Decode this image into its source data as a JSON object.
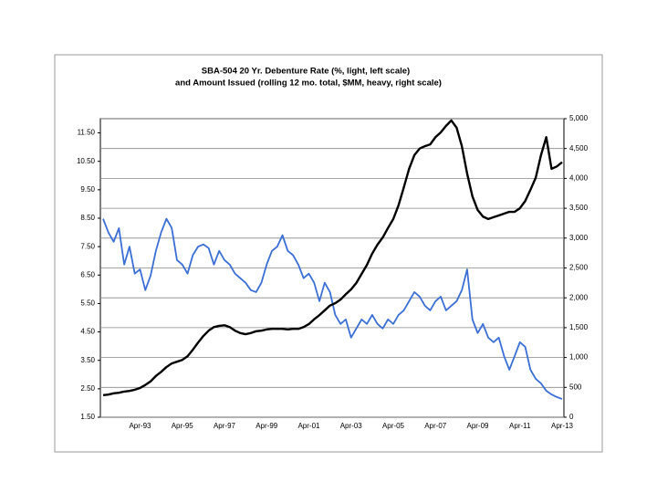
{
  "chart_data": {
    "type": "line",
    "title": [
      "SBA-504 20 Yr. Debenture Rate (%, light, left scale)",
      "and Amount Issued (rolling 12 mo. total, $MM, heavy, right scale)"
    ],
    "categories": [
      null,
      null,
      null,
      null,
      null,
      null,
      null,
      "Apr-93",
      null,
      null,
      null,
      null,
      null,
      null,
      null,
      "Apr-95",
      null,
      null,
      null,
      null,
      null,
      null,
      null,
      "Apr-97",
      null,
      null,
      null,
      null,
      null,
      null,
      null,
      "Apr-99",
      null,
      null,
      null,
      null,
      null,
      null,
      null,
      "Apr-01",
      null,
      null,
      null,
      null,
      null,
      null,
      null,
      "Apr-03",
      null,
      null,
      null,
      null,
      null,
      null,
      null,
      "Apr-05",
      null,
      null,
      null,
      null,
      null,
      null,
      null,
      "Apr-07",
      null,
      null,
      null,
      null,
      null,
      null,
      null,
      "Apr-09",
      null,
      null,
      null,
      null,
      null,
      null,
      null,
      "Apr-11",
      null,
      null,
      null,
      null,
      null,
      null,
      null,
      "Apr-13"
    ],
    "series": [
      {
        "name": "Debenture Rate",
        "color": "#3b6fd6",
        "axis": "y",
        "values": [
          8.48,
          8.0,
          7.67,
          8.15,
          6.87,
          7.5,
          6.55,
          6.7,
          5.97,
          6.48,
          7.35,
          8.0,
          8.48,
          8.16,
          7.03,
          6.87,
          6.55,
          7.2,
          7.5,
          7.58,
          7.45,
          6.87,
          7.35,
          7.03,
          6.87,
          6.55,
          6.39,
          6.23,
          5.97,
          5.9,
          6.23,
          6.87,
          7.35,
          7.5,
          7.9,
          7.35,
          7.2,
          6.87,
          6.39,
          6.55,
          6.23,
          5.58,
          6.23,
          5.9,
          5.1,
          4.78,
          4.94,
          4.3,
          4.62,
          4.94,
          4.78,
          5.1,
          4.78,
          4.62,
          4.94,
          4.78,
          5.1,
          5.26,
          5.58,
          5.9,
          5.74,
          5.42,
          5.26,
          5.58,
          5.74,
          5.26,
          5.42,
          5.58,
          5.97,
          6.7,
          4.94,
          4.46,
          4.78,
          4.3,
          4.14,
          4.3,
          3.65,
          3.17,
          3.65,
          4.14,
          3.98,
          3.17,
          2.85,
          2.69,
          2.43,
          2.3,
          2.21,
          2.14
        ]
      },
      {
        "name": "Amount Issued",
        "color": "#000000",
        "axis": "y2",
        "values": [
          370,
          380,
          400,
          410,
          430,
          440,
          460,
          490,
          540,
          600,
          690,
          760,
          840,
          900,
          930,
          960,
          1020,
          1130,
          1250,
          1360,
          1450,
          1510,
          1530,
          1540,
          1510,
          1450,
          1410,
          1390,
          1410,
          1440,
          1450,
          1470,
          1480,
          1480,
          1480,
          1470,
          1480,
          1480,
          1510,
          1560,
          1640,
          1710,
          1790,
          1870,
          1910,
          1970,
          2060,
          2140,
          2250,
          2400,
          2550,
          2740,
          2890,
          3010,
          3170,
          3320,
          3550,
          3850,
          4160,
          4390,
          4500,
          4540,
          4570,
          4690,
          4770,
          4880,
          4970,
          4850,
          4540,
          4080,
          3700,
          3470,
          3360,
          3320,
          3350,
          3380,
          3410,
          3440,
          3440,
          3500,
          3620,
          3810,
          4010,
          4390,
          4690,
          4160,
          4200,
          4270
        ]
      }
    ],
    "ylim": [
      1.5,
      12.0
    ],
    "yticks": [
      {
        "value": 1.5,
        "label": "1.50"
      },
      {
        "value": 2.5,
        "label": "2.50"
      },
      {
        "value": 3.5,
        "label": "3.50"
      },
      {
        "value": 4.5,
        "label": "4.50"
      },
      {
        "value": 5.5,
        "label": "5.50"
      },
      {
        "value": 6.5,
        "label": "6.50"
      },
      {
        "value": 7.5,
        "label": "7.50"
      },
      {
        "value": 8.5,
        "label": "8.50"
      },
      {
        "value": 9.5,
        "label": "9.50"
      },
      {
        "value": 10.5,
        "label": "10.50"
      },
      {
        "value": 11.5,
        "label": "11.50"
      }
    ],
    "y2lim": [
      0,
      5000
    ],
    "y2ticks": [
      0,
      500,
      {
        "value": 1000,
        "label": "1,000"
      },
      {
        "value": 1500,
        "label": "1,500"
      },
      {
        "value": 2000,
        "label": "2,000"
      },
      {
        "value": 2500,
        "label": "2,500"
      },
      {
        "value": 3000,
        "label": "3,000"
      },
      {
        "value": 3500,
        "label": "3,500"
      },
      {
        "value": 4000,
        "label": "4,000"
      },
      {
        "value": 4500,
        "label": "4,500"
      },
      {
        "value": 5000,
        "label": "5,000"
      }
    ],
    "grid": true
  }
}
